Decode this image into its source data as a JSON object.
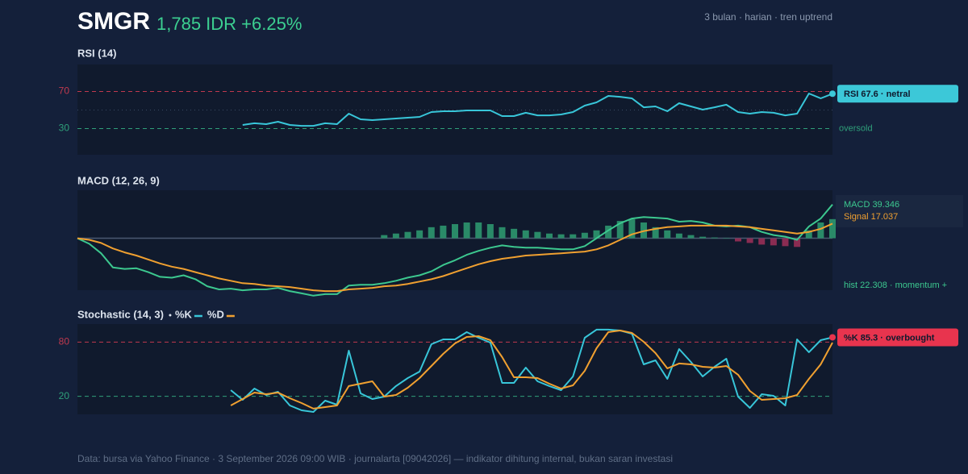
{
  "header": {
    "ticker": "SMGR",
    "quote": "1,785 IDR +6.25%",
    "meta": "3 bulan · harian · tren uptrend"
  },
  "chart_data": [
    {
      "type": "line",
      "title": "RSI (14)",
      "ylim": [
        0,
        100
      ],
      "yticks": [
        30,
        70
      ],
      "ytick_colors": [
        "#2fa07a",
        "#c0394e"
      ],
      "midline": 50,
      "annotation": "oversold",
      "badge": "RSI 67.6 · netral",
      "badge_color": "#3cc8d8",
      "series": [
        {
          "name": "RSI",
          "type": "line",
          "color": "#38c6d9",
          "values": [
            null,
            null,
            null,
            null,
            null,
            null,
            null,
            null,
            null,
            null,
            null,
            null,
            null,
            null,
            33.9,
            35.7,
            34.8,
            37.4,
            33.9,
            33.0,
            33.0,
            35.7,
            34.8,
            46.1,
            40.0,
            39.1,
            40.0,
            40.9,
            41.7,
            42.6,
            47.8,
            48.7,
            48.7,
            49.6,
            49.6,
            49.6,
            43.5,
            43.5,
            47.0,
            44.3,
            44.3,
            45.2,
            47.8,
            54.8,
            58.3,
            65.2,
            64.3,
            62.6,
            53.0,
            53.9,
            48.7,
            57.4,
            53.9,
            50.4,
            53.0,
            55.7,
            47.8,
            46.1,
            47.8,
            47.0,
            44.3,
            46.1,
            67.8,
            62.6,
            67.6
          ]
        }
      ]
    },
    {
      "type": "line",
      "title": "MACD (12, 26, 9)",
      "ylim": [
        -70,
        56
      ],
      "zero_line": true,
      "hist_label": "hist 22.308 · momentum +",
      "series": [
        {
          "name": "hist",
          "type": "bar",
          "color": "#2a8a68",
          "negative_color": "#8a2c52",
          "values": [
            null,
            null,
            null,
            null,
            null,
            null,
            null,
            null,
            null,
            null,
            null,
            null,
            null,
            null,
            null,
            null,
            null,
            null,
            null,
            null,
            null,
            null,
            null,
            null,
            null,
            null,
            3.7,
            5.5,
            7.4,
            9.2,
            12.9,
            14.7,
            16.5,
            18.4,
            18.4,
            16.5,
            12.9,
            11,
            9.2,
            7.4,
            5.5,
            4.6,
            4.6,
            6.4,
            9.2,
            14.7,
            20.2,
            22.1,
            18.4,
            12.9,
            9.2,
            5.5,
            3.7,
            1.8,
            0.9,
            0.5,
            -3.7,
            -5.5,
            -7.4,
            -8.3,
            -9.2,
            -10.1,
            9.2,
            18.4,
            22.308
          ]
        },
        {
          "name": "MACD",
          "type": "line",
          "color": "#3cc88f",
          "end_label": "MACD 39.346",
          "values": [
            0,
            -6.4,
            -17.5,
            -34,
            -35.8,
            -35,
            -39.5,
            -45,
            -46,
            -43.2,
            -47.8,
            -56,
            -59.7,
            -58.8,
            -60.7,
            -59.7,
            -59.7,
            -57.9,
            -61.6,
            -64.3,
            -67,
            -65.2,
            -65.2,
            -55.1,
            -54.2,
            -54.2,
            -52.4,
            -49.6,
            -45.9,
            -43.2,
            -38.6,
            -31.2,
            -25.7,
            -19.3,
            -14.7,
            -11,
            -8.3,
            -10.1,
            -11,
            -11,
            -11.9,
            -12.9,
            -12.9,
            -9.2,
            0,
            9.2,
            17.5,
            23,
            24.8,
            23.9,
            23,
            19.3,
            20.2,
            18.4,
            14.7,
            13.8,
            14.7,
            12.9,
            7.4,
            3.7,
            1.8,
            -1.8,
            13.8,
            23,
            39.346
          ]
        },
        {
          "name": "Signal",
          "type": "line",
          "color": "#f0a030",
          "end_label": "Signal 17.037",
          "values": [
            0,
            -1.8,
            -5.5,
            -11.9,
            -16.5,
            -20.2,
            -24.8,
            -29.4,
            -33.1,
            -35.8,
            -39.5,
            -43.2,
            -46.9,
            -49.6,
            -52.4,
            -53.3,
            -55.1,
            -56,
            -56.9,
            -58.8,
            -60.7,
            -61.6,
            -61.6,
            -59.7,
            -58.8,
            -57.9,
            -56,
            -55.1,
            -53.3,
            -50.5,
            -47.8,
            -44.1,
            -39.5,
            -34.9,
            -30.3,
            -26.7,
            -23.9,
            -22.1,
            -20.2,
            -19.3,
            -18.4,
            -17.5,
            -16.5,
            -15.6,
            -12.9,
            -8.3,
            -1.8,
            4.6,
            8.3,
            11,
            12.9,
            13.8,
            14.7,
            14.7,
            14.7,
            14.7,
            13.8,
            12.9,
            11,
            9.2,
            7.4,
            5.5,
            7.4,
            11,
            17.037
          ]
        }
      ]
    },
    {
      "type": "line",
      "title": "Stochastic (14, 3)",
      "ylim": [
        0,
        100
      ],
      "yticks": [
        20,
        80
      ],
      "ytick_colors": [
        "#2fa07a",
        "#c0394e"
      ],
      "badge": "%K 85.3 · overbought",
      "badge_color": "#e8344e",
      "series": [
        {
          "name": "%K",
          "type": "line",
          "color": "#38c6d9",
          "values": [
            null,
            null,
            null,
            null,
            null,
            null,
            null,
            null,
            null,
            null,
            null,
            null,
            null,
            26.8,
            16.1,
            28.6,
            21.4,
            25,
            9.8,
            4.5,
            2.7,
            15.2,
            10.7,
            70.5,
            23.2,
            17,
            19.6,
            31.3,
            40.2,
            47.3,
            77.7,
            83,
            83,
            91.1,
            84.8,
            79.5,
            34.8,
            34.8,
            51.8,
            36.6,
            31.3,
            26.8,
            42,
            84.8,
            93.8,
            93.8,
            92.9,
            89.3,
            55.4,
            59.8,
            39.3,
            72.3,
            58,
            42,
            52.7,
            61.6,
            19.6,
            7.1,
            22.3,
            20.5,
            9.8,
            83,
            68.8,
            82.1,
            85.3
          ]
        },
        {
          "name": "%D",
          "type": "line",
          "color": "#f0a030",
          "values": [
            null,
            null,
            null,
            null,
            null,
            null,
            null,
            null,
            null,
            null,
            null,
            null,
            null,
            9.8,
            17,
            24.1,
            22.3,
            24.1,
            17.9,
            12.5,
            6.3,
            8,
            9.8,
            31.3,
            33.9,
            36.6,
            19.6,
            21.4,
            29.5,
            40.2,
            53.6,
            67,
            78.6,
            85.7,
            86.6,
            82.1,
            63.4,
            41.1,
            41.1,
            40.2,
            33.9,
            28.6,
            32.1,
            48.2,
            73.2,
            91.1,
            92.9,
            90.2,
            80.4,
            67.9,
            50.9,
            56.3,
            55.4,
            52.7,
            51.8,
            53.6,
            43.8,
            25.9,
            16.1,
            17,
            17.9,
            21.4,
            39.3,
            55.4,
            79.5
          ]
        }
      ]
    }
  ],
  "footer": "Data: bursa via Yahoo Finance · 3 September 2026 09:00 WIB · journalarta [09042026] — indikator dihitung internal, bukan saran investasi"
}
